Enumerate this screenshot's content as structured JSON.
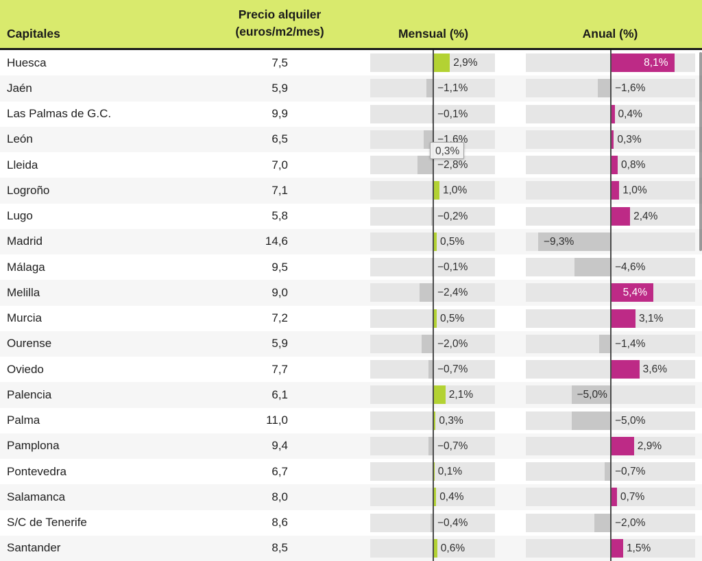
{
  "header": {
    "capitales": "Capitales",
    "precio_line1": "Precio alquiler",
    "precio_line2": "(euros/m2/mes)",
    "mensual": "Mensual (%)",
    "anual": "Anual (%)"
  },
  "tooltip": {
    "label": "0,3%"
  },
  "colors": {
    "header_bg": "#d9ea6d",
    "header_border": "#171717",
    "positive_mensual": "#b3d233",
    "positive_anual": "#bd2a86",
    "negative_bar": "#c7c7c7",
    "track": "#e6e6e6",
    "zero_line": "#4a4a4a",
    "row_alt": "#f6f6f6"
  },
  "chart_data": {
    "type": "bar",
    "title": "",
    "xlabel": "",
    "ylabel": "",
    "legend_position": "none",
    "categories": [
      "Huesca",
      "Jaén",
      "Las Palmas de G.C.",
      "León",
      "Lleida",
      "Logroño",
      "Lugo",
      "Madrid",
      "Málaga",
      "Melilla",
      "Murcia",
      "Ourense",
      "Oviedo",
      "Palencia",
      "Palma",
      "Pamplona",
      "Pontevedra",
      "Salamanca",
      "S/C de Tenerife",
      "Santander"
    ],
    "series": [
      {
        "name": "Precio alquiler (euros/m2/mes)",
        "values": [
          7.5,
          5.9,
          9.9,
          6.5,
          7.0,
          7.1,
          5.8,
          14.6,
          9.5,
          9.0,
          7.2,
          5.9,
          7.7,
          6.1,
          11.0,
          9.4,
          6.7,
          8.0,
          8.6,
          8.5
        ]
      },
      {
        "name": "Mensual (%)",
        "values": [
          2.9,
          -1.1,
          -0.1,
          -1.6,
          -2.8,
          1.0,
          -0.2,
          0.5,
          -0.1,
          -2.4,
          0.5,
          -2.0,
          -0.7,
          2.1,
          0.3,
          -0.7,
          0.1,
          0.4,
          -0.4,
          0.6
        ]
      },
      {
        "name": "Anual (%)",
        "values": [
          8.1,
          -1.6,
          0.4,
          0.3,
          0.8,
          1.0,
          2.4,
          -9.3,
          -4.6,
          5.4,
          3.1,
          -1.4,
          3.6,
          -5.0,
          -5.0,
          2.9,
          -0.7,
          0.7,
          -2.0,
          1.5
        ]
      }
    ],
    "rows": [
      {
        "capital": "Huesca",
        "precio": "7,5",
        "mensual": 2.9,
        "mensual_label": "2,9%",
        "anual": 8.1,
        "anual_label": "8,1%",
        "anual_label_style": "inside-end"
      },
      {
        "capital": "Jaén",
        "precio": "5,9",
        "mensual": -1.1,
        "mensual_label": "−1,1%",
        "anual": -1.6,
        "anual_label": "−1,6%",
        "anual_label_style": "default"
      },
      {
        "capital": "Las Palmas de G.C.",
        "precio": "9,9",
        "mensual": -0.1,
        "mensual_label": "−0,1%",
        "anual": 0.4,
        "anual_label": "0,4%",
        "anual_label_style": "default"
      },
      {
        "capital": "León",
        "precio": "6,5",
        "mensual": -1.6,
        "mensual_label": "−1,6%",
        "anual": 0.3,
        "anual_label": "0,3%",
        "anual_label_style": "default"
      },
      {
        "capital": "Lleida",
        "precio": "7,0",
        "mensual": -2.8,
        "mensual_label": "−2,8%",
        "anual": 0.8,
        "anual_label": "0,8%",
        "anual_label_style": "default"
      },
      {
        "capital": "Logroño",
        "precio": "7,1",
        "mensual": 1.0,
        "mensual_label": "1,0%",
        "anual": 1.0,
        "anual_label": "1,0%",
        "anual_label_style": "default"
      },
      {
        "capital": "Lugo",
        "precio": "5,8",
        "mensual": -0.2,
        "mensual_label": "−0,2%",
        "anual": 2.4,
        "anual_label": "2,4%",
        "anual_label_style": "default"
      },
      {
        "capital": "Madrid",
        "precio": "14,6",
        "mensual": 0.5,
        "mensual_label": "0,5%",
        "anual": -9.3,
        "anual_label": "−9,3%",
        "anual_label_style": "inside-start"
      },
      {
        "capital": "Málaga",
        "precio": "9,5",
        "mensual": -0.1,
        "mensual_label": "−0,1%",
        "anual": -4.6,
        "anual_label": "−4,6%",
        "anual_label_style": "default"
      },
      {
        "capital": "Melilla",
        "precio": "9,0",
        "mensual": -2.4,
        "mensual_label": "−2,4%",
        "anual": 5.4,
        "anual_label": "5,4%",
        "anual_label_style": "inside-end"
      },
      {
        "capital": "Murcia",
        "precio": "7,2",
        "mensual": 0.5,
        "mensual_label": "0,5%",
        "anual": 3.1,
        "anual_label": "3,1%",
        "anual_label_style": "default"
      },
      {
        "capital": "Ourense",
        "precio": "5,9",
        "mensual": -2.0,
        "mensual_label": "−2,0%",
        "anual": -1.4,
        "anual_label": "−1,4%",
        "anual_label_style": "default"
      },
      {
        "capital": "Oviedo",
        "precio": "7,7",
        "mensual": -0.7,
        "mensual_label": "−0,7%",
        "anual": 3.6,
        "anual_label": "3,6%",
        "anual_label_style": "default"
      },
      {
        "capital": "Palencia",
        "precio": "6,1",
        "mensual": 2.1,
        "mensual_label": "2,1%",
        "anual": -5.0,
        "anual_label": "−5,0%",
        "anual_label_style": "inside-start"
      },
      {
        "capital": "Palma",
        "precio": "11,0",
        "mensual": 0.3,
        "mensual_label": "0,3%",
        "anual": -5.0,
        "anual_label": "−5,0%",
        "anual_label_style": "default"
      },
      {
        "capital": "Pamplona",
        "precio": "9,4",
        "mensual": -0.7,
        "mensual_label": "−0,7%",
        "anual": 2.9,
        "anual_label": "2,9%",
        "anual_label_style": "default"
      },
      {
        "capital": "Pontevedra",
        "precio": "6,7",
        "mensual": 0.1,
        "mensual_label": "0,1%",
        "anual": -0.7,
        "anual_label": "−0,7%",
        "anual_label_style": "default"
      },
      {
        "capital": "Salamanca",
        "precio": "8,0",
        "mensual": 0.4,
        "mensual_label": "0,4%",
        "anual": 0.7,
        "anual_label": "0,7%",
        "anual_label_style": "default"
      },
      {
        "capital": "S/C de Tenerife",
        "precio": "8,6",
        "mensual": -0.4,
        "mensual_label": "−0,4%",
        "anual": -2.0,
        "anual_label": "−2,0%",
        "anual_label_style": "default"
      },
      {
        "capital": "Santander",
        "precio": "8,5",
        "mensual": 0.6,
        "mensual_label": "0,6%",
        "anual": 1.5,
        "anual_label": "1,5%",
        "anual_label_style": "default"
      }
    ]
  }
}
